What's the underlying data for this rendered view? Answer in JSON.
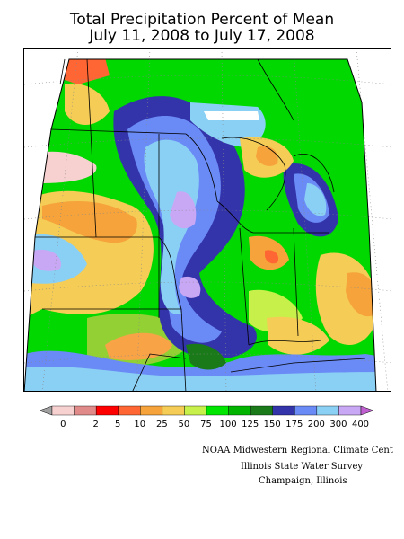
{
  "title": {
    "line1": "Total Precipitation Percent of Mean",
    "line2": "July 11, 2008 to July 17, 2008"
  },
  "legend": {
    "labels": [
      "0",
      "2",
      "5",
      "10",
      "25",
      "50",
      "75",
      "100",
      "125",
      "150",
      "175",
      "200",
      "300",
      "400"
    ],
    "colors": [
      "#f7d0d0",
      "#e08a8a",
      "#ff0000",
      "#ff6633",
      "#f5a33a",
      "#f5cc55",
      "#c8f04a",
      "#00e600",
      "#00b400",
      "#1a7a1a",
      "#3333aa",
      "#6a8af5",
      "#8ad0f5",
      "#c8a8f5"
    ],
    "end_left_color": "#a0a0a0",
    "end_right_color": "#c060d0"
  },
  "credits": {
    "line1": "NOAA Midwestern Regional Climate Cent",
    "line2": "Illinois State Water Survey",
    "line3": "Champaign, Illinois"
  }
}
